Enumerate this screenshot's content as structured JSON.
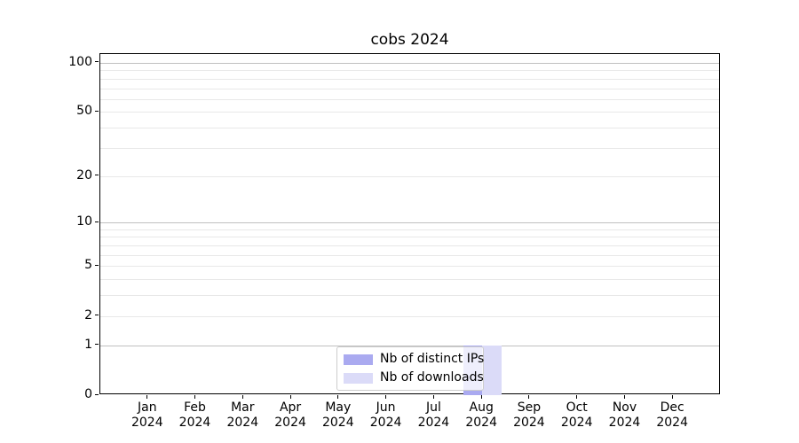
{
  "chart_data": {
    "type": "bar",
    "title": "cobs 2024",
    "categories": [
      "Jan",
      "Feb",
      "Mar",
      "Apr",
      "May",
      "Jun",
      "Jul",
      "Aug",
      "Sep",
      "Oct",
      "Nov",
      "Dec"
    ],
    "category_sublabel": "2024",
    "series": [
      {
        "name": "Nb of distinct IPs",
        "color": "#aaaaf0",
        "values": [
          0,
          0,
          0,
          0,
          0,
          0,
          0,
          1,
          0,
          0,
          0,
          0
        ]
      },
      {
        "name": "Nb of downloads",
        "color": "#dbdbf8",
        "values": [
          0,
          0,
          0,
          0,
          0,
          0,
          0,
          1,
          0,
          0,
          0,
          0
        ]
      }
    ],
    "y_axis": {
      "scale": "log10(1+v)",
      "tick_values": [
        0,
        1,
        2,
        5,
        10,
        20,
        50,
        100
      ],
      "major_gridlines": [
        1,
        10,
        100
      ],
      "minor_gridlines": [
        2,
        3,
        4,
        5,
        6,
        7,
        8,
        9,
        20,
        30,
        40,
        50,
        60,
        70,
        80,
        90
      ],
      "max": 113
    },
    "x_axis": {
      "label_line2": "2024"
    },
    "legend": {
      "position": "lower center",
      "entries": [
        "Nb of distinct IPs",
        "Nb of downloads"
      ]
    },
    "grid": true,
    "colors": {
      "major_grid": "#c0c0c0",
      "minor_grid": "#e8e8e8",
      "spine": "#000000"
    }
  }
}
